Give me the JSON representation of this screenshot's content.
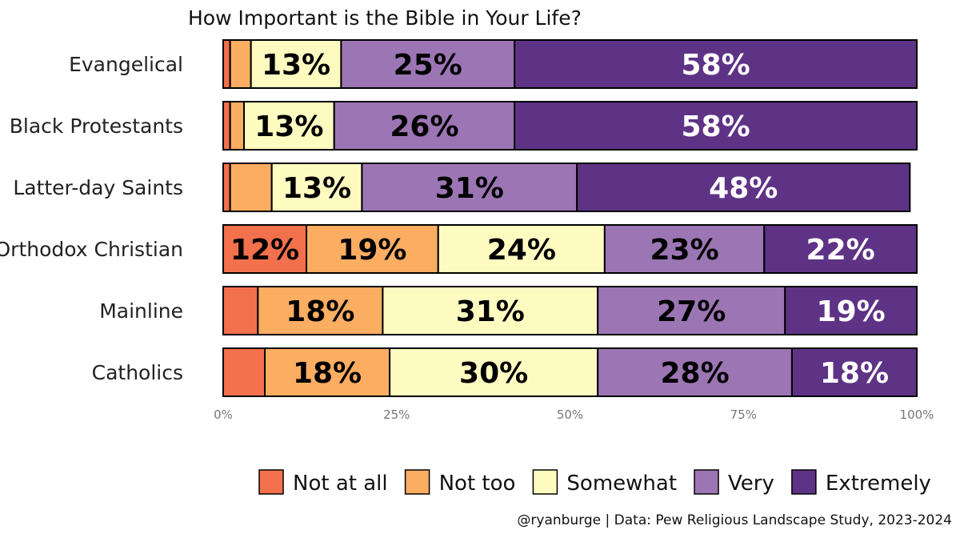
{
  "chart_data": {
    "type": "bar",
    "orientation": "horizontal",
    "stacked": true,
    "title": "How Important is the Bible in Your Life?",
    "categories": [
      "Evangelical",
      "Black Protestants",
      "Latter-day Saints",
      "Orthodox Christian",
      "Mainline",
      "Catholics"
    ],
    "series": [
      {
        "name": "Not at all",
        "color": "#f2704b",
        "values": [
          1,
          1,
          1,
          12,
          5,
          6
        ]
      },
      {
        "name": "Not too",
        "color": "#fbad62",
        "values": [
          3,
          2,
          6,
          19,
          18,
          18
        ]
      },
      {
        "name": "Somewhat",
        "color": "#fefbc1",
        "values": [
          13,
          13,
          13,
          24,
          31,
          30
        ]
      },
      {
        "name": "Very",
        "color": "#9c76b4",
        "values": [
          25,
          26,
          31,
          23,
          27,
          28
        ]
      },
      {
        "name": "Extremely",
        "color": "#5e3385",
        "values": [
          58,
          58,
          48,
          22,
          19,
          18
        ]
      }
    ],
    "segment_labels": [
      [
        null,
        null,
        "13%",
        "25%",
        "58%"
      ],
      [
        null,
        null,
        "13%",
        "26%",
        "58%"
      ],
      [
        null,
        null,
        "13%",
        "31%",
        "48%"
      ],
      [
        "12%",
        "19%",
        "24%",
        "23%",
        "22%"
      ],
      [
        null,
        "18%",
        "31%",
        "27%",
        "19%"
      ],
      [
        null,
        "18%",
        "30%",
        "28%",
        "18%"
      ]
    ],
    "xlim": [
      0,
      100
    ],
    "xticks": [
      0,
      25,
      50,
      75,
      100
    ],
    "xtick_labels": [
      "0%",
      "25%",
      "50%",
      "75%",
      "100%"
    ],
    "legend_position": "bottom",
    "caption": "@ryanburge | Data: Pew Religious Landscape Study, 2023-2024"
  }
}
